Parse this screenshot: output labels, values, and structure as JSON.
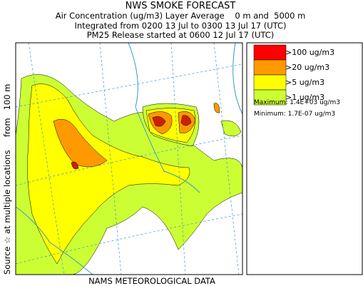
{
  "header": {
    "title": "NWS SMOKE FORECAST",
    "lines": [
      "Air Concentration (ug/m3) Layer Average    0 m and  5000 m",
      "Integrated from 0200 13 Jul to 0300 13 Jul 17 (UTC)",
      "PM25 Release started at 0600 12 Jul 17 (UTC)"
    ]
  },
  "side_label": "Source ☆ at multiple locations     from   100 m",
  "legend": {
    "items": [
      {
        "label": ">100 ug/m3",
        "color": "#ff0000"
      },
      {
        "label": ">20 ug/m3",
        "color": "#ff9900"
      },
      {
        "label": ">5 ug/m3",
        "color": "#ffff00"
      },
      {
        "label": ">1 ug/m3",
        "color": "#ccff33"
      }
    ],
    "maximum": "Maximum: 1.4E+03 ug/m3",
    "minimum": "Minimum: 1.7E-07 ug/m3"
  },
  "footer": "NAMS METEOROLOGICAL DATA"
}
